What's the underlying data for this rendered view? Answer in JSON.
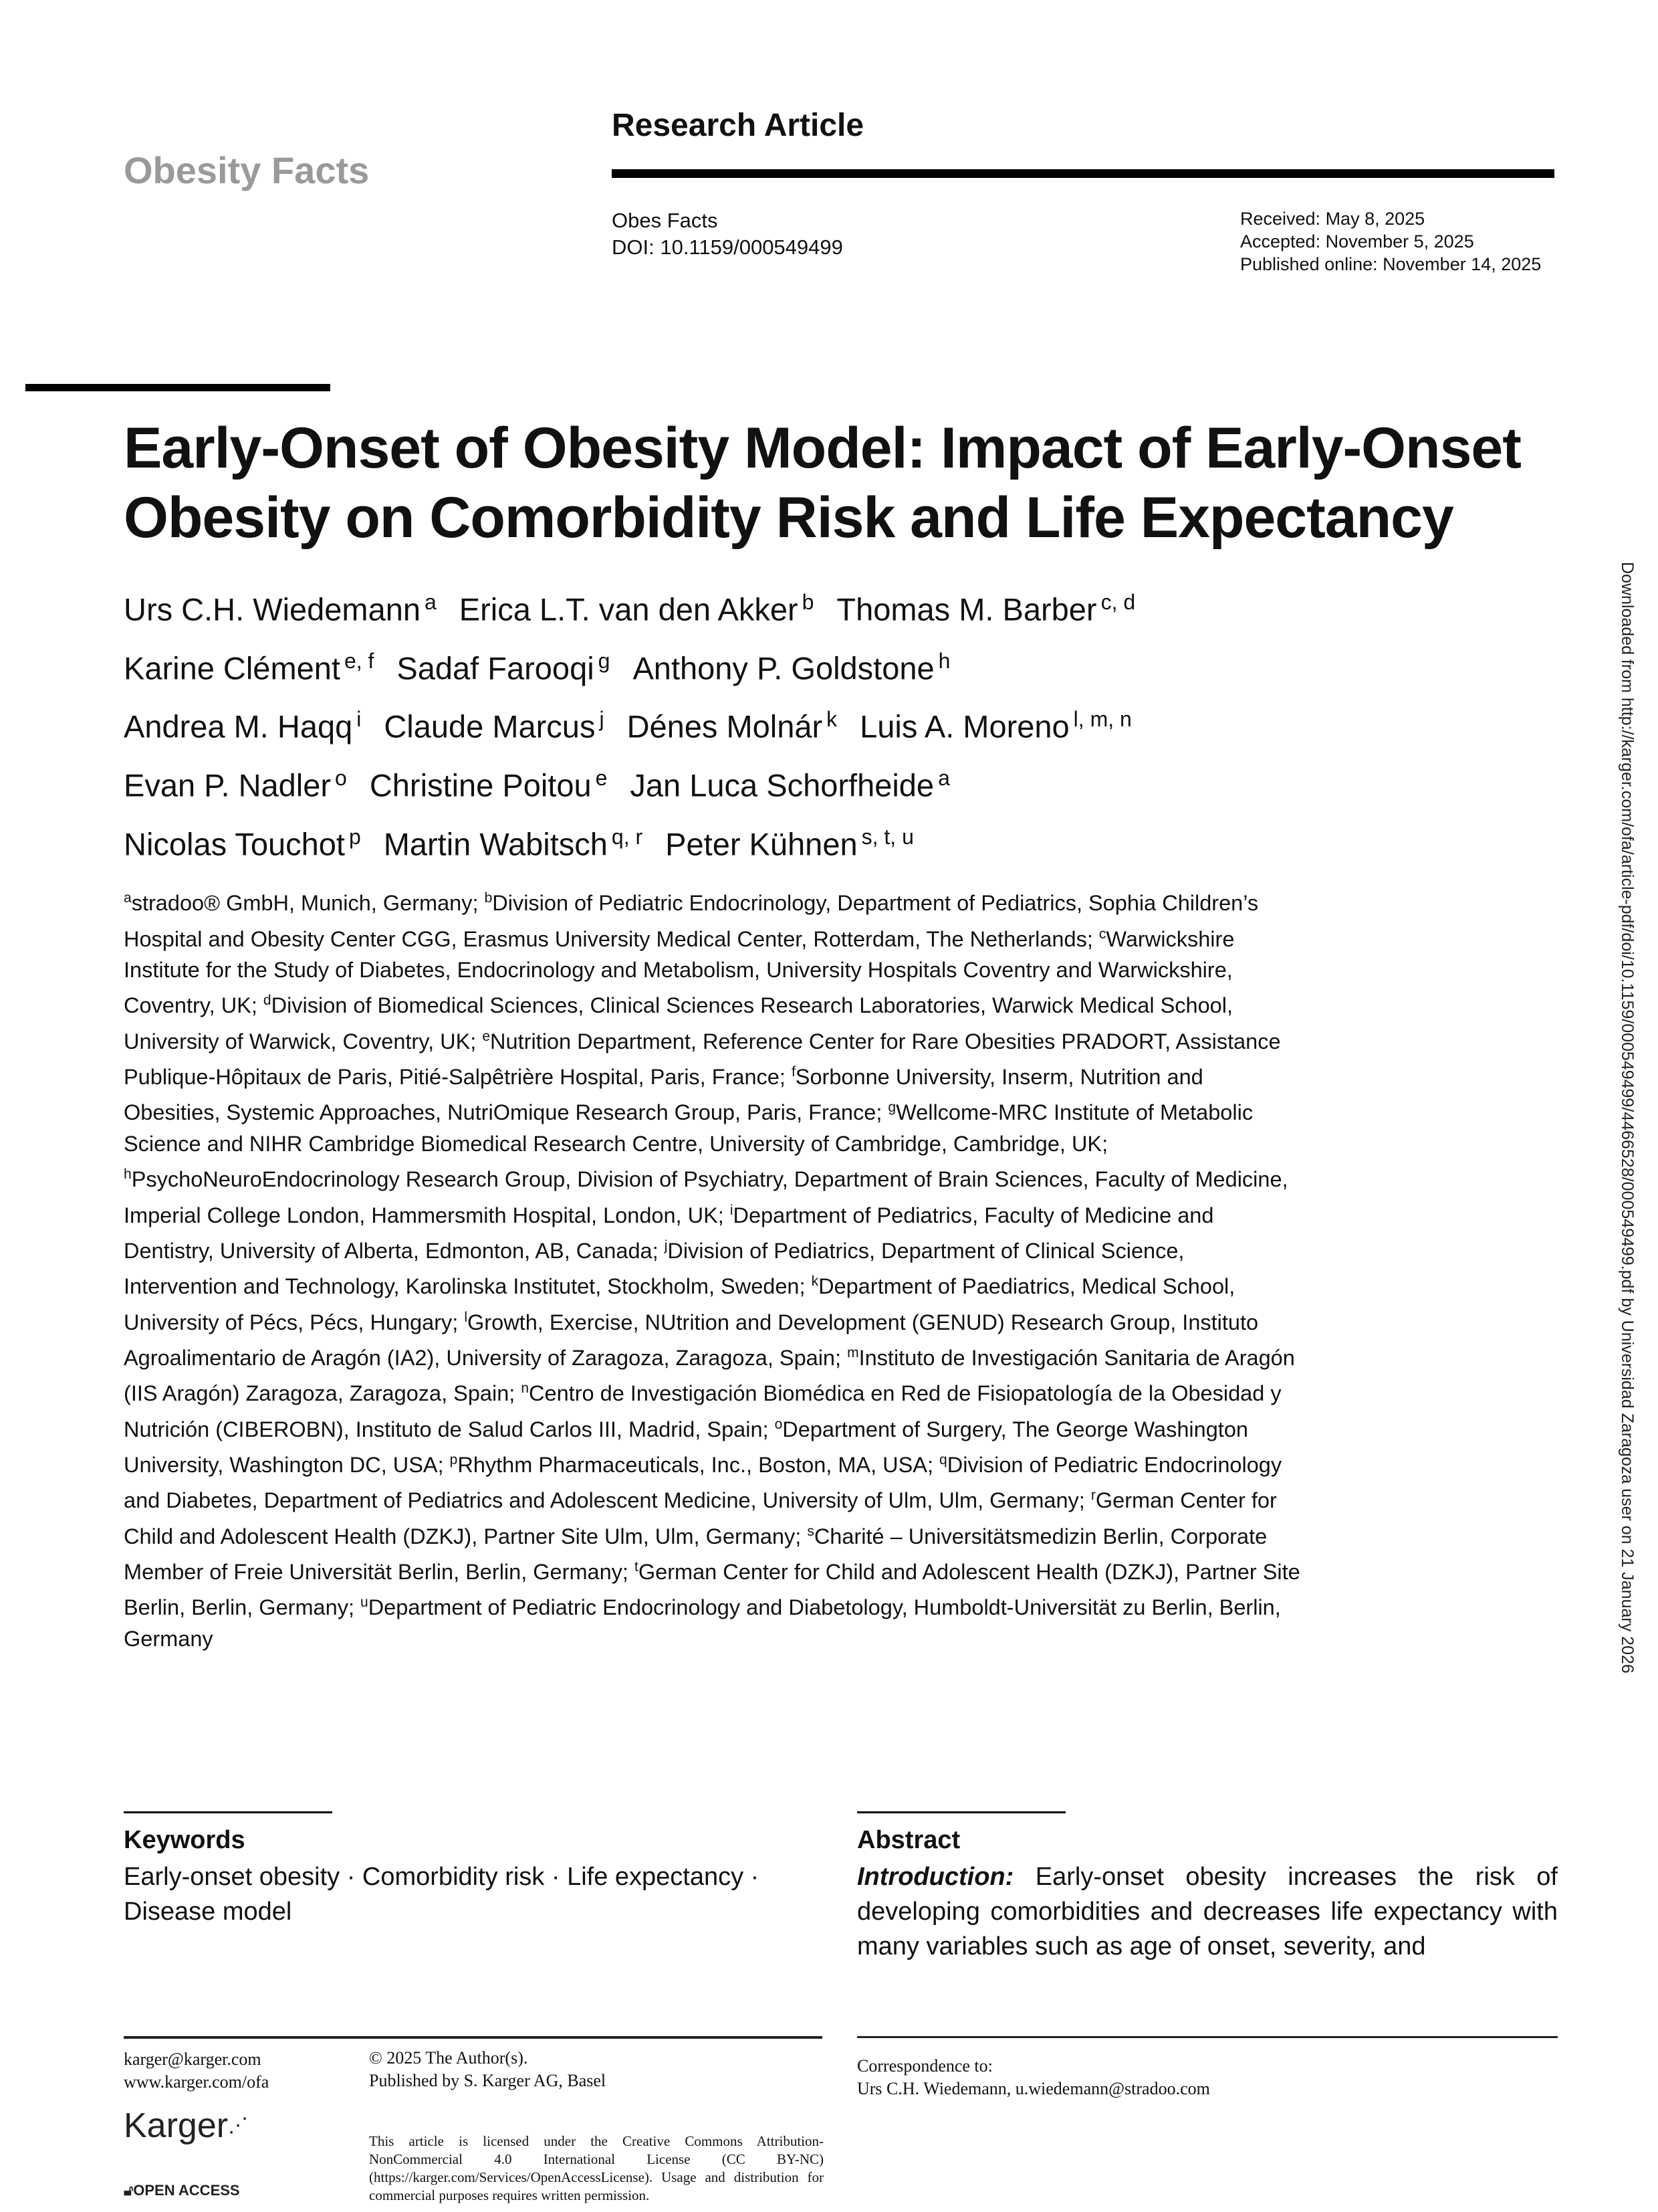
{
  "header": {
    "journal": "Obesity Facts",
    "article_type": "Research Article",
    "journal_abbrev": "Obes Facts",
    "doi": "DOI: 10.1159/000549499",
    "received": "Received: May 8, 2025",
    "accepted": "Accepted: November 5, 2025",
    "published": "Published online: November 14, 2025"
  },
  "title": "Early-Onset of Obesity Model: Impact of Early-Onset Obesity on Comorbidity Risk and Life Expectancy",
  "authors": [
    {
      "name": "Urs C.H. Wiedemann",
      "sup": "a"
    },
    {
      "name": "Erica L.T. van den Akker",
      "sup": "b"
    },
    {
      "name": "Thomas M. Barber",
      "sup": "c, d"
    },
    {
      "name": "Karine Clément",
      "sup": "e, f"
    },
    {
      "name": "Sadaf Farooqi",
      "sup": "g"
    },
    {
      "name": "Anthony P. Goldstone",
      "sup": "h"
    },
    {
      "name": "Andrea M. Haqq",
      "sup": "i"
    },
    {
      "name": "Claude Marcus",
      "sup": "j"
    },
    {
      "name": "Dénes Molnár",
      "sup": "k"
    },
    {
      "name": "Luis A. Moreno",
      "sup": "l, m, n"
    },
    {
      "name": "Evan P. Nadler",
      "sup": "o"
    },
    {
      "name": "Christine Poitou",
      "sup": "e"
    },
    {
      "name": "Jan Luca Schorfheide",
      "sup": "a"
    },
    {
      "name": "Nicolas Touchot",
      "sup": "p"
    },
    {
      "name": "Martin Wabitsch",
      "sup": "q, r"
    },
    {
      "name": "Peter Kühnen",
      "sup": "s, t, u"
    }
  ],
  "affiliations": [
    {
      "sup": "a",
      "text": "stradoo® GmbH, Munich, Germany; "
    },
    {
      "sup": "b",
      "text": "Division of Pediatric Endocrinology, Department of Pediatrics, Sophia Children’s Hospital and Obesity Center CGG, Erasmus University Medical Center, Rotterdam, The Netherlands; "
    },
    {
      "sup": "c",
      "text": "Warwickshire Institute for the Study of Diabetes, Endocrinology and Metabolism, University Hospitals Coventry and Warwickshire, Coventry, UK; "
    },
    {
      "sup": "d",
      "text": "Division of Biomedical Sciences, Clinical Sciences Research Laboratories, Warwick Medical School, University of Warwick, Coventry, UK; "
    },
    {
      "sup": "e",
      "text": "Nutrition Department, Reference Center for Rare Obesities PRADORT, Assistance Publique-Hôpitaux de Paris, Pitié-Salpêtrière Hospital, Paris, France; "
    },
    {
      "sup": "f",
      "text": "Sorbonne University, Inserm, Nutrition and Obesities, Systemic Approaches, NutriOmique Research Group, Paris, France; "
    },
    {
      "sup": "g",
      "text": "Wellcome-MRC Institute of Metabolic Science and NIHR Cambridge Biomedical Research Centre, University of Cambridge, Cambridge, UK; "
    },
    {
      "sup": "h",
      "text": "PsychoNeuroEndocrinology Research Group, Division of Psychiatry, Department of Brain Sciences, Faculty of Medicine, Imperial College London, Hammersmith Hospital, London, UK; "
    },
    {
      "sup": "i",
      "text": "Department of Pediatrics, Faculty of Medicine and Dentistry, University of Alberta, Edmonton, AB, Canada; "
    },
    {
      "sup": "j",
      "text": "Division of Pediatrics, Department of Clinical Science, Intervention and Technology, Karolinska Institutet, Stockholm, Sweden; "
    },
    {
      "sup": "k",
      "text": "Department of Paediatrics, Medical School, University of Pécs, Pécs, Hungary; "
    },
    {
      "sup": "l",
      "text": "Growth, Exercise, NUtrition and Development (GENUD) Research Group, Instituto Agroalimentario de Aragón (IA2), University of Zaragoza, Zaragoza, Spain; "
    },
    {
      "sup": "m",
      "text": "Instituto de Investigación Sanitaria de Aragón (IIS Aragón) Zaragoza, Zaragoza, Spain; "
    },
    {
      "sup": "n",
      "text": "Centro de Investigación Biomédica en Red de Fisiopatología de la Obesidad y Nutrición (CIBEROBN), Instituto de Salud Carlos III, Madrid, Spain; "
    },
    {
      "sup": "o",
      "text": "Department of Surgery, The George Washington University, Washington DC, USA; "
    },
    {
      "sup": "p",
      "text": "Rhythm Pharmaceuticals, Inc., Boston, MA, USA; "
    },
    {
      "sup": "q",
      "text": "Division of Pediatric Endocrinology and Diabetes, Department of Pediatrics and Adolescent Medicine, University of Ulm, Ulm, Germany; "
    },
    {
      "sup": "r",
      "text": "German Center for Child and Adolescent Health (DZKJ), Partner Site Ulm, Ulm, Germany; "
    },
    {
      "sup": "s",
      "text": "Charité – Universitätsmedizin Berlin, Corporate Member of Freie Universität Berlin, Berlin, Germany; "
    },
    {
      "sup": "t",
      "text": "German Center for Child and Adolescent Health (DZKJ), Partner Site Berlin, Berlin, Germany; "
    },
    {
      "sup": "u",
      "text": "Department of Pediatric Endocrinology and Diabetology, Humboldt-Universität zu Berlin, Berlin, Germany"
    }
  ],
  "keywords": {
    "heading": "Keywords",
    "text": "Early-onset obesity · Comorbidity risk · Life expectancy · Disease model"
  },
  "abstract": {
    "heading": "Abstract",
    "intro_label": "Introduction:",
    "text": " Early-onset obesity increases the risk of developing comorbidities and decreases life expectancy with many variables such as age of onset, severity, and"
  },
  "footer": {
    "email": "karger@karger.com",
    "website": "www.karger.com/ofa",
    "copyright": "© 2025 The Author(s).",
    "publisher": "Published by S. Karger AG, Basel",
    "license": "This article is licensed under the Creative Commons Attribution-NonCommercial 4.0 International License (CC BY-NC) (https://karger.com/Services/OpenAccessLicense). Usage and distribution for commercial purposes requires written permission.",
    "logo": "Karger",
    "open_access": "OPEN ACCESS",
    "correspondence_label": "Correspondence to:",
    "correspondence": "Urs C.H. Wiedemann, u.wiedemann@stradoo.com"
  },
  "side_note": "Downloaded from http://karger.com/ofa/article-pdf/doi/10.1159/000549499/4466528/000549499.pdf by Universidad Zaragoza user on 21 January 2026"
}
